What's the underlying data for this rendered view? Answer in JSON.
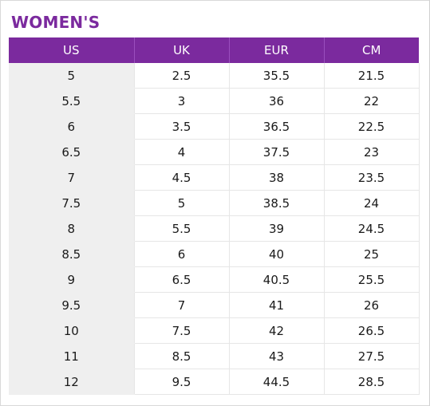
{
  "title": "WOMEN'S",
  "columns": [
    "US",
    "UK",
    "EUR",
    "CM"
  ],
  "rows": [
    [
      "5",
      "2.5",
      "35.5",
      "21.5"
    ],
    [
      "5.5",
      "3",
      "36",
      "22"
    ],
    [
      "6",
      "3.5",
      "36.5",
      "22.5"
    ],
    [
      "6.5",
      "4",
      "37.5",
      "23"
    ],
    [
      "7",
      "4.5",
      "38",
      "23.5"
    ],
    [
      "7.5",
      "5",
      "38.5",
      "24"
    ],
    [
      "8",
      "5.5",
      "39",
      "24.5"
    ],
    [
      "8.5",
      "6",
      "40",
      "25"
    ],
    [
      "9",
      "6.5",
      "40.5",
      "25.5"
    ],
    [
      "9.5",
      "7",
      "41",
      "26"
    ],
    [
      "10",
      "7.5",
      "42",
      "26.5"
    ],
    [
      "11",
      "8.5",
      "43",
      "27.5"
    ],
    [
      "12",
      "9.5",
      "44.5",
      "28.5"
    ]
  ],
  "colors": {
    "accent": "#7b2a9e",
    "header_text": "#ffffff",
    "us_column_bg": "#efefef"
  }
}
